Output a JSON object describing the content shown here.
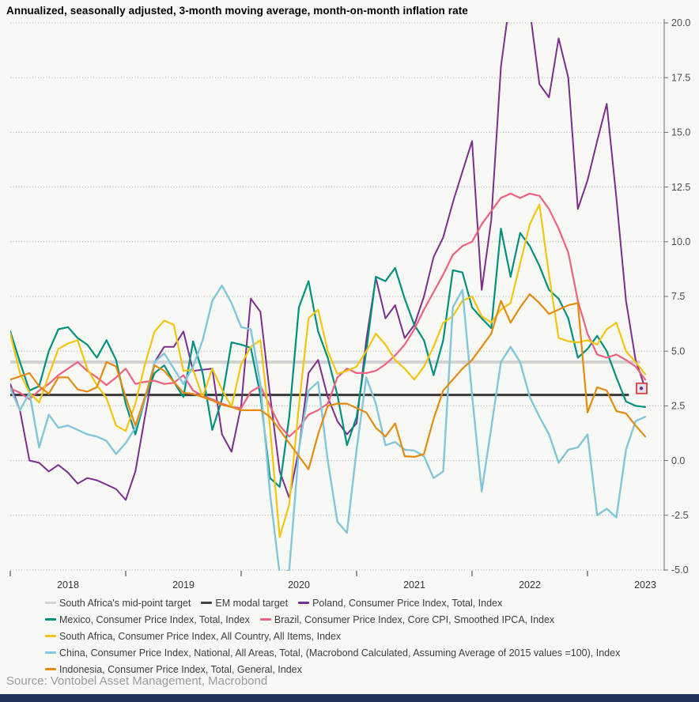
{
  "title": "Annualized, seasonally adjusted, 3-month moving average, month-on-month inflation rate",
  "source": "Source: Vontobel Asset Management, Macrobond",
  "footer_bar_color": "#21315b",
  "chart_data": {
    "type": "line",
    "x_tick_months": [
      0,
      12,
      24,
      36,
      48,
      60
    ],
    "x_tick_labels": [
      "2018",
      "2019",
      "2020",
      "2021",
      "2022",
      "2023"
    ],
    "y_tick_values": [
      20,
      17.5,
      15,
      12.5,
      10,
      7.5,
      5,
      2.5,
      0,
      -2.5,
      -5
    ],
    "y_tick_labels": [
      "20.0",
      "17.5",
      "15.0",
      "12.5",
      "10.0",
      "7.5",
      "5.0",
      "2.5",
      "0.0",
      "-2.5",
      "-5.0"
    ],
    "ylim": [
      -5,
      20
    ],
    "grid": "dotted-horizontal",
    "legend_position": "bottom",
    "x_range_note": "monthly points Jan 2018 - mid 2023",
    "series": [
      {
        "name": "South Africa's mid-point target",
        "color": "#d2d2d2",
        "kind": "hline",
        "value": 4.5,
        "end_month": 65.5,
        "width": 4
      },
      {
        "name": "EM modal target",
        "color": "#404040",
        "kind": "hline",
        "value": 3.0,
        "end_month": 64.3,
        "width": 3.2
      },
      {
        "name": "Poland, Consumer Price Index, Total, Index",
        "color": "#7b2e8f",
        "kind": "line",
        "width": 2,
        "values": [
          3.5,
          2.3,
          0.0,
          -0.1,
          -0.5,
          -0.2,
          -0.55,
          -1.05,
          -0.8,
          -0.9,
          -1.1,
          -1.3,
          -1.8,
          -0.5,
          2.0,
          4.5,
          5.2,
          5.2,
          5.9,
          4.1,
          4.15,
          4.2,
          1.2,
          0.4,
          2.5,
          7.4,
          6.8,
          3.0,
          -0.5,
          -1.7,
          0.5,
          4.0,
          4.6,
          2.9,
          1.8,
          1.2,
          1.7,
          5.5,
          8.35,
          6.5,
          7.1,
          5.6,
          6.2,
          7.5,
          9.3,
          10.2,
          11.8,
          13.2,
          14.6,
          7.8,
          11.0,
          18.0,
          21.3,
          21.6,
          20.6,
          17.2,
          16.6,
          19.3,
          17.5,
          11.5,
          12.8,
          14.6,
          16.3,
          12.0,
          7.3,
          4.6,
          3.3
        ]
      },
      {
        "name": "Mexico, Consumer Price Index, Total, Index",
        "color": "#00917e",
        "kind": "line",
        "width": 2.2,
        "values": [
          5.9,
          4.5,
          3.2,
          3.4,
          5.0,
          6.0,
          6.1,
          5.6,
          5.3,
          4.7,
          5.5,
          4.6,
          2.6,
          1.2,
          2.8,
          4.0,
          4.35,
          3.6,
          2.9,
          5.45,
          4.0,
          1.4,
          2.8,
          5.4,
          5.3,
          5.15,
          3.0,
          -0.8,
          -1.2,
          2.0,
          7.0,
          8.2,
          5.9,
          4.7,
          3.0,
          0.7,
          2.0,
          5.0,
          8.4,
          8.2,
          8.8,
          7.4,
          6.2,
          5.5,
          3.9,
          5.5,
          8.7,
          8.6,
          7.0,
          6.5,
          6.05,
          10.6,
          8.4,
          10.4,
          9.8,
          8.9,
          7.8,
          7.4,
          6.5,
          4.7,
          5.1,
          5.7,
          5.0,
          3.8,
          2.7,
          2.5,
          2.45
        ]
      },
      {
        "name": "Brazil, Consumer Price Index, Core CPI, Smoothed IPCA, Index",
        "color": "#ee6181",
        "kind": "line",
        "width": 2.2,
        "values": [
          3.3,
          3.1,
          2.8,
          3.2,
          3.5,
          3.9,
          4.2,
          4.5,
          4.1,
          3.8,
          3.45,
          3.8,
          4.2,
          3.5,
          3.6,
          3.65,
          3.5,
          3.55,
          3.9,
          3.2,
          2.95,
          2.8,
          2.6,
          2.45,
          2.4,
          3.15,
          3.4,
          2.5,
          1.6,
          1.1,
          1.5,
          2.1,
          2.3,
          2.6,
          3.8,
          4.2,
          4.0,
          4.0,
          4.1,
          4.4,
          4.8,
          5.3,
          6.0,
          6.9,
          7.7,
          8.5,
          9.4,
          9.8,
          10.0,
          10.8,
          11.4,
          12.0,
          12.2,
          12.0,
          12.2,
          12.1,
          11.5,
          10.6,
          9.5,
          7.3,
          5.8,
          4.85,
          4.7,
          4.85,
          4.6,
          4.3,
          3.7
        ]
      },
      {
        "name": "South Africa, Consumer Price Index, All Country, All Items, Index",
        "color": "#f2c50f",
        "kind": "line",
        "width": 2.2,
        "values": [
          5.8,
          4.0,
          3.1,
          2.65,
          3.9,
          5.1,
          5.35,
          5.5,
          4.2,
          3.45,
          2.85,
          1.6,
          1.35,
          2.6,
          4.4,
          5.9,
          6.4,
          6.2,
          4.1,
          4.15,
          2.9,
          4.2,
          3.25,
          2.45,
          4.4,
          5.2,
          5.5,
          1.5,
          -3.5,
          -2.0,
          2.5,
          6.5,
          6.9,
          5.0,
          3.96,
          4.1,
          4.3,
          5.0,
          5.8,
          5.3,
          4.6,
          4.2,
          3.7,
          4.3,
          5.2,
          6.3,
          6.6,
          7.3,
          7.5,
          6.6,
          6.3,
          6.9,
          7.2,
          9.0,
          10.8,
          11.7,
          8.5,
          5.6,
          5.45,
          5.4,
          5.5,
          5.3,
          6.0,
          6.3,
          5.0,
          4.5,
          3.95
        ]
      },
      {
        "name": "China, Consumer Price Index, National, All Areas, Total, (Macrobond Calculated, Assuming Average of 2015 values =100), Index",
        "color": "#82c6da",
        "kind": "line",
        "width": 2.4,
        "values": [
          3.3,
          2.3,
          3.1,
          0.6,
          2.1,
          1.5,
          1.6,
          1.4,
          1.2,
          1.1,
          0.9,
          0.3,
          0.8,
          1.5,
          2.8,
          4.5,
          4.9,
          4.2,
          3.5,
          4.3,
          5.5,
          7.3,
          8.0,
          7.2,
          6.1,
          6.0,
          3.5,
          -1.5,
          -5.2,
          -5.0,
          0.5,
          3.2,
          3.6,
          0.0,
          -2.8,
          -3.3,
          0.5,
          3.8,
          2.6,
          0.7,
          0.85,
          0.5,
          0.45,
          0.2,
          -0.8,
          -0.5,
          7.0,
          7.8,
          3.0,
          -1.4,
          1.5,
          4.5,
          5.2,
          4.5,
          2.9,
          2.0,
          1.2,
          -0.1,
          0.5,
          0.6,
          1.2,
          -2.5,
          -2.2,
          -2.6,
          0.5,
          1.8,
          2.0
        ]
      },
      {
        "name": "Indonesia, Consumer Price Index, Total, General, Index",
        "color": "#e48b0f",
        "kind": "line",
        "width": 2.2,
        "values": [
          3.7,
          3.85,
          4.0,
          3.4,
          3.05,
          3.8,
          3.8,
          3.25,
          3.15,
          3.35,
          4.5,
          4.3,
          2.9,
          1.6,
          2.9,
          4.35,
          4.1,
          3.6,
          3.1,
          3.05,
          2.9,
          2.75,
          2.55,
          2.45,
          2.3,
          2.3,
          2.3,
          2.0,
          1.4,
          0.8,
          0.2,
          -0.4,
          1.2,
          2.5,
          2.6,
          2.6,
          2.4,
          2.2,
          1.5,
          1.1,
          1.7,
          0.2,
          0.17,
          0.3,
          1.9,
          3.2,
          3.7,
          4.2,
          4.6,
          5.2,
          5.8,
          7.3,
          6.3,
          7.0,
          7.6,
          7.2,
          6.7,
          6.9,
          7.1,
          7.2,
          2.2,
          3.35,
          3.2,
          2.26,
          2.15,
          1.6,
          1.1
        ]
      }
    ],
    "end_marker": {
      "series": "Poland, Consumer Price Index, Total, Index",
      "value": 3.3,
      "outline_color": "#e03a3a",
      "fill_color": "#dce6f2",
      "dot_color": "#7b2e8f"
    }
  },
  "legend": {
    "rows": [
      [
        0,
        1,
        2
      ],
      [
        3,
        4
      ],
      [
        5
      ],
      [
        6
      ],
      [
        7
      ]
    ]
  }
}
